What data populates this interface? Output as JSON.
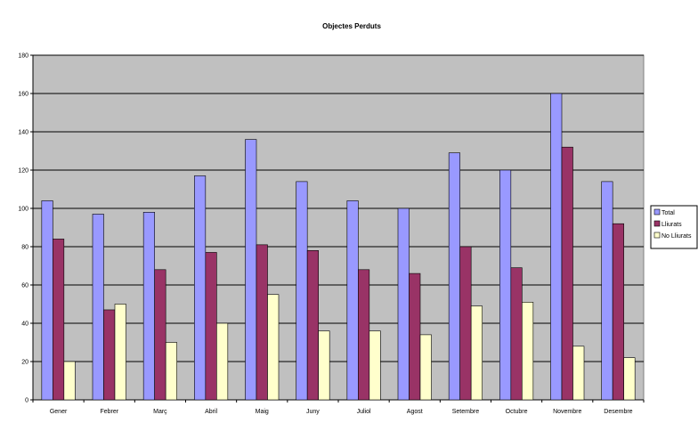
{
  "chart_data": {
    "type": "bar",
    "title": "Objectes Perduts",
    "xlabel": "",
    "ylabel": "",
    "ylim": [
      0,
      180
    ],
    "yticks": [
      0,
      20,
      40,
      60,
      80,
      100,
      120,
      140,
      160,
      180
    ],
    "grid": true,
    "legend_position": "right",
    "categories": [
      "Gener",
      "Febrer",
      "Març",
      "Abril",
      "Maig",
      "Juny",
      "Juliol",
      "Agost",
      "Setembre",
      "Octubre",
      "Novembre",
      "Desembre"
    ],
    "series": [
      {
        "name": "Total",
        "color": "#9999ff",
        "values": [
          104,
          97,
          98,
          117,
          136,
          114,
          104,
          100,
          129,
          120,
          160,
          114
        ]
      },
      {
        "name": "Lliurats",
        "color": "#993366",
        "values": [
          84,
          47,
          68,
          77,
          81,
          78,
          68,
          66,
          80,
          69,
          132,
          92
        ]
      },
      {
        "name": "No Lliurats",
        "color": "#ffffcc",
        "values": [
          20,
          50,
          30,
          40,
          55,
          36,
          36,
          34,
          49,
          51,
          28,
          22
        ]
      }
    ],
    "plot_background": "#c0c0c0"
  }
}
